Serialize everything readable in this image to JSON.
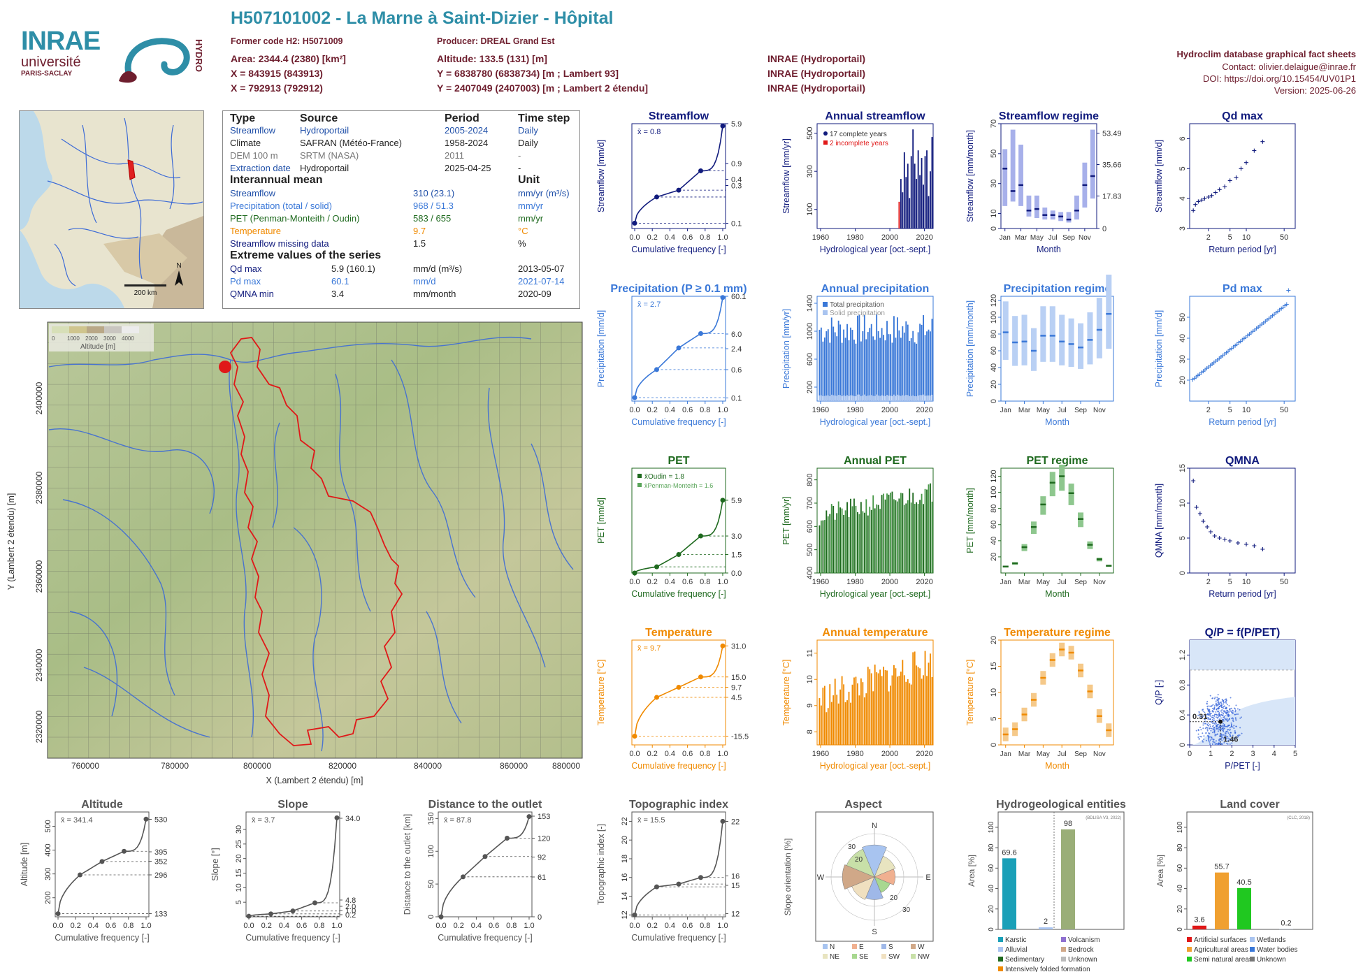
{
  "header": {
    "title": "H507101002 - La Marne à Saint-Dizier - Hôpital",
    "former_code": "Former code H2: H5071009",
    "producer": "Producer: DREAL Grand Est",
    "area": "Area: 2344.4 (2380) [km²]",
    "altitude": "Altitude: 133.5 (131) [m]",
    "x93": "X = 843915 (843913)",
    "y93": "Y = 6838780 (6838734) [m ; Lambert 93]",
    "x2e": "X = 792913 (792912)",
    "y2e": "Y = 2407049 (2407003) [m ; Lambert 2 étendu]",
    "src1": "INRAE (Hydroportail)",
    "src2": "INRAE (Hydroportail)",
    "src3": "INRAE (Hydroportail)",
    "right1": "Hydroclim database graphical fact sheets",
    "right2": "Contact: olivier.delaigue@inrae.fr",
    "right3": "DOI: https://doi.org/10.15454/UV01P1",
    "right4": "Version: 2025-06-26"
  },
  "logos": {
    "inrae": "INRAE",
    "univ": "université",
    "univ2": "PARIS-SACLAY",
    "hydro": "HYDRO"
  },
  "info": {
    "h_type": "Type",
    "h_source": "Source",
    "h_period": "Period",
    "h_step": "Time step",
    "rows": [
      {
        "type": "Streamflow",
        "source": "Hydroportail",
        "period": "2005-2024",
        "step": "Daily"
      },
      {
        "type": "Climate",
        "source": "SAFRAN (Météo-France)",
        "period": "1958-2024",
        "step": "Daily"
      },
      {
        "type": "DEM 100 m",
        "source": "SRTM (NASA)",
        "period": "2011",
        "step": "-"
      },
      {
        "type": "Extraction date",
        "source": "Hydroportail",
        "period": "2025-04-25",
        "step": "-"
      }
    ],
    "h_mean": "Interannual mean",
    "h_unit": "Unit",
    "means": [
      {
        "label": "Streamflow",
        "value": "310 (23.1)",
        "unit": "mm/yr (m³/s)"
      },
      {
        "label": "Precipitation (total / solid)",
        "value": "968 / 51.3",
        "unit": "mm/yr"
      },
      {
        "label": "PET (Penman-Monteith / Oudin)",
        "value": "583 / 655",
        "unit": "mm/yr"
      },
      {
        "label": "Temperature",
        "value": "9.7",
        "unit": "°C"
      },
      {
        "label": "Streamflow missing data",
        "value": "1.5",
        "unit": "%"
      }
    ],
    "h_extreme": "Extreme values of the series",
    "extremes": [
      {
        "label": "Qd max",
        "value": "5.9 (160.1)",
        "unit": "mm/d (m³/s)",
        "date": "2013-05-07"
      },
      {
        "label": "Pd max",
        "value": "60.1",
        "unit": "mm/d",
        "date": "2021-07-14"
      },
      {
        "label": "QMNA min",
        "value": "3.4",
        "unit": "mm/month",
        "date": "2020-09"
      }
    ]
  },
  "minimap": {
    "scale": "200 km",
    "north": "N"
  },
  "map": {
    "xlabel": "X (Lambert 2 étendu) [m]",
    "ylabel": "Y (Lambert 2 étendu) [m]",
    "xticks": [
      "760000",
      "780000",
      "800000",
      "820000",
      "840000",
      "860000",
      "880000"
    ],
    "yticks": [
      "2400000",
      "2380000",
      "2360000",
      "2340000",
      "2320000"
    ],
    "legend_title": "Altitude [m]",
    "legend_ticks": [
      "0",
      "1000",
      "2000",
      "3000",
      "4000"
    ]
  },
  "panels": {
    "streamflow": {
      "title": "Streamflow",
      "ylabel": "Streamflow [mm/d]",
      "xlabel": "Cumulative frequency [-]",
      "mean": "x̄ = 0.8",
      "right_ticks": [
        "5.9",
        "0.9",
        "0.4",
        "0.3",
        "0.1"
      ]
    },
    "annual_streamflow": {
      "title": "Annual streamflow",
      "ylabel": "Streamflow [mm/yr]",
      "xlabel": "Hydrological year [oct.-sept.]",
      "leg1": "17 complete years",
      "leg2": "2 incomplete years"
    },
    "streamflow_regime": {
      "title": "Streamflow regime",
      "ylabel": "Streamflow [mm/month]",
      "xlabel": "Month",
      "right_label": "Streamflow [m³/s]",
      "right_ticks": [
        "53.49",
        "35.66",
        "17.83",
        "0"
      ]
    },
    "qd_max": {
      "title": "Qd max",
      "ylabel": "Streamflow [mm/d]",
      "xlabel": "Return period [yr]"
    },
    "precipitation": {
      "title": "Precipitation (P ≥ 0.1 mm)",
      "ylabel": "Precipitation [mm/d]",
      "xlabel": "Cumulative frequency [-]",
      "mean": "x̄ = 2.7",
      "right_ticks": [
        "60.1",
        "6.0",
        "2.4",
        "0.6",
        "0.1"
      ]
    },
    "annual_precip": {
      "title": "Annual precipitation",
      "ylabel": "Precipitation [mm/yr]",
      "xlabel": "Hydrological year [oct.-sept.]",
      "leg1": "Total precipitation",
      "leg2": "Solid precipitation"
    },
    "precip_regime": {
      "title": "Precipitation regime",
      "ylabel": "Precipitation [mm/month]",
      "xlabel": "Month"
    },
    "pd_max": {
      "title": "Pd max",
      "ylabel": "Precipitation [mm/d]",
      "xlabel": "Return period [yr]"
    },
    "pet": {
      "title": "PET",
      "ylabel": "PET [mm/d]",
      "xlabel": "Cumulative frequency [-]",
      "leg1": "x̄Oudin = 1.8",
      "leg2": "x̄Penman-Monteith = 1.6",
      "right_ticks": [
        "5.9",
        "3.0",
        "1.5",
        "0.0"
      ]
    },
    "annual_pet": {
      "title": "Annual PET",
      "ylabel": "PET [mm/yr]",
      "xlabel": "Hydrological year [oct.-sept.]"
    },
    "pet_regime": {
      "title": "PET regime",
      "ylabel": "PET [mm/month]",
      "xlabel": "Month"
    },
    "qmna": {
      "title": "QMNA",
      "ylabel": "QMNA [mm/month]",
      "xlabel": "Return period [yr]"
    },
    "temperature": {
      "title": "Temperature",
      "ylabel": "Temperature [°C]",
      "xlabel": "Cumulative frequency [-]",
      "mean": "x̄ = 9.7",
      "right_ticks": [
        "31.0",
        "15.0",
        "9.7",
        "4.5",
        "-15.5"
      ]
    },
    "annual_temp": {
      "title": "Annual temperature",
      "ylabel": "Temperature [°C]",
      "xlabel": "Hydrological year [oct.-sept.]"
    },
    "temp_regime": {
      "title": "Temperature regime",
      "ylabel": "Temperature [°C]",
      "xlabel": "Month"
    },
    "qp": {
      "title": "Q/P = f(P/PET)",
      "ylabel": "Q/P [-]",
      "xlabel": "P/PET [-]",
      "ann1": "0.31",
      "ann2": "1.46"
    },
    "altitude": {
      "title": "Altitude",
      "ylabel": "Altitude [m]",
      "xlabel": "Cumulative frequency [-]",
      "mean": "x̄ = 341.4",
      "right_ticks": [
        "530",
        "395",
        "352",
        "296",
        "133"
      ]
    },
    "slope": {
      "title": "Slope",
      "ylabel": "Slope [°]",
      "xlabel": "Cumulative frequency [-]",
      "mean": "x̄ = 3.7",
      "right_ticks": [
        "34.0",
        "4.8",
        "2.0",
        "1.0",
        "0.2"
      ]
    },
    "distance": {
      "title": "Distance to the outlet",
      "ylabel": "Distance to the outlet [km]",
      "xlabel": "Cumulative frequency [-]",
      "mean": "x̄ = 87.8",
      "right_ticks": [
        "153",
        "120",
        "92",
        "61",
        "0"
      ]
    },
    "topo": {
      "title": "Topographic index",
      "ylabel": "Topographic index [-]",
      "xlabel": "Cumulative frequency [-]",
      "mean": "x̄ = 15.5",
      "right_ticks": [
        "22",
        "16",
        "15",
        "12"
      ]
    },
    "aspect": {
      "title": "Aspect",
      "ylabel": "Slope orientation [%]",
      "legend": [
        "N",
        "E",
        "S",
        "W",
        "NE",
        "SE",
        "SW",
        "NW"
      ]
    },
    "hydrogeo": {
      "title": "Hydrogeological entities",
      "ylabel": "Area [%]",
      "source": "(BDLISA V3, 2022)",
      "legend": [
        "Karstic",
        "Volcanism",
        "Alluvial",
        "Bedrock",
        "Sedimentary",
        "Unknown",
        "Intensively folded formation"
      ]
    },
    "landcover": {
      "title": "Land cover",
      "ylabel": "Area [%]",
      "source": "(CLC, 2018)",
      "legend": [
        "Artificial surfaces",
        "Wetlands",
        "Agricultural areas",
        "Water bodies",
        "Semi natural areas",
        "Unknown"
      ]
    }
  },
  "chart_data": [
    {
      "type": "line",
      "name": "streamflow_cdf",
      "x": [
        0,
        0.25,
        0.5,
        0.75,
        1.0
      ],
      "y": [
        0.1,
        0.3,
        0.4,
        0.9,
        5.9
      ],
      "yscale": "log",
      "ylim": [
        0.1,
        6
      ]
    },
    {
      "type": "bar",
      "name": "annual_streamflow",
      "x": [
        2006,
        2007,
        2008,
        2009,
        2010,
        2011,
        2012,
        2013,
        2014,
        2015,
        2016,
        2017,
        2018,
        2019,
        2020,
        2021,
        2022,
        2023,
        2024
      ],
      "values": [
        260,
        190,
        400,
        270,
        340,
        160,
        380,
        520,
        340,
        260,
        410,
        280,
        370,
        230,
        380,
        410,
        170,
        300,
        480
      ],
      "incomplete": [
        2005,
        2024
      ],
      "ylim": [
        0,
        550
      ]
    },
    {
      "type": "box",
      "name": "streamflow_regime",
      "categories": [
        "Jan",
        "Feb",
        "Mar",
        "Apr",
        "May",
        "Jun",
        "Jul",
        "Aug",
        "Sep",
        "Oct",
        "Nov",
        "Dec"
      ],
      "median": [
        40,
        25,
        29,
        12,
        13,
        9,
        9,
        8,
        6,
        12,
        29,
        35
      ],
      "q25": [
        15,
        18,
        15,
        8,
        7,
        6,
        6,
        5,
        4,
        6,
        14,
        20
      ],
      "q75": [
        53,
        66,
        56,
        22,
        22,
        14,
        12,
        11,
        11,
        22,
        44,
        66
      ],
      "ylim": [
        0,
        70
      ]
    },
    {
      "type": "scatter",
      "name": "qd_max",
      "x": [
        1.05,
        1.15,
        1.3,
        1.5,
        1.7,
        2,
        2.3,
        2.7,
        3.2,
        4,
        5,
        6.5,
        8,
        10,
        14,
        20
      ],
      "y": [
        3.6,
        3.8,
        3.9,
        3.95,
        4.0,
        4.05,
        4.1,
        4.2,
        4.3,
        4.4,
        4.6,
        4.7,
        5.0,
        5.2,
        5.6,
        5.9
      ],
      "xscale": "log"
    },
    {
      "type": "line",
      "name": "precipitation_cdf",
      "x": [
        0,
        0.25,
        0.5,
        0.75,
        1.0
      ],
      "y": [
        0.1,
        0.6,
        2.4,
        6.0,
        60.1
      ],
      "yscale": "log"
    },
    {
      "type": "bar",
      "name": "annual_precipitation",
      "x_range": [
        1959,
        2024
      ],
      "ylim": [
        0,
        1500
      ]
    },
    {
      "type": "box",
      "name": "precip_regime",
      "categories": [
        "Jan",
        "Feb",
        "Mar",
        "Apr",
        "May",
        "Jun",
        "Jul",
        "Aug",
        "Sep",
        "Oct",
        "Nov",
        "Dec"
      ],
      "median": [
        82,
        70,
        71,
        60,
        78,
        78,
        71,
        68,
        64,
        73,
        85,
        104
      ],
      "ylim": [
        0,
        125
      ]
    },
    {
      "type": "line",
      "name": "pet_cdf",
      "x": [
        0,
        0.25,
        0.5,
        0.75,
        1.0
      ],
      "y": [
        0.0,
        0.5,
        1.5,
        3.0,
        5.9
      ]
    },
    {
      "type": "bar",
      "name": "annual_pet",
      "x_range": [
        1959,
        2024
      ],
      "ylim": [
        400,
        850
      ]
    },
    {
      "type": "box",
      "name": "pet_regime",
      "categories": [
        "Jan",
        "Feb",
        "Mar",
        "Apr",
        "May",
        "Jun",
        "Jul",
        "Aug",
        "Sep",
        "Oct",
        "Nov",
        "Dec"
      ],
      "median": [
        8,
        12,
        32,
        57,
        85,
        112,
        120,
        99,
        67,
        35,
        17,
        9
      ],
      "ylim": [
        0,
        130
      ]
    },
    {
      "type": "scatter",
      "name": "qmna",
      "x": [
        1.05,
        1.2,
        1.4,
        1.6,
        1.9,
        2.2,
        2.6,
        3.2,
        4,
        5,
        7,
        10,
        14,
        20
      ],
      "y": [
        13.2,
        9.4,
        8.5,
        7.4,
        6.6,
        5.9,
        5.3,
        5.0,
        4.8,
        4.6,
        4.3,
        4.1,
        3.9,
        3.4
      ],
      "xscale": "log"
    },
    {
      "type": "line",
      "name": "temperature_cdf",
      "x": [
        0,
        0.25,
        0.5,
        0.75,
        1.0
      ],
      "y": [
        -15.5,
        4.5,
        9.7,
        15.0,
        31.0
      ]
    },
    {
      "type": "bar",
      "name": "annual_temperature",
      "x_range": [
        1959,
        2024
      ],
      "ylim": [
        8,
        12
      ]
    },
    {
      "type": "box",
      "name": "temp_regime",
      "categories": [
        "Jan",
        "Feb",
        "Mar",
        "Apr",
        "May",
        "Jun",
        "Jul",
        "Aug",
        "Sep",
        "Oct",
        "Nov",
        "Dec"
      ],
      "median": [
        2.0,
        3.0,
        5.8,
        8.6,
        12.8,
        16.2,
        18.2,
        17.6,
        14.2,
        10.2,
        5.5,
        2.8
      ],
      "ylim": [
        0,
        20
      ]
    },
    {
      "type": "scatter",
      "name": "qp",
      "xlim": [
        0,
        5
      ],
      "ylim": [
        0,
        1.4
      ],
      "highlight": [
        1.46,
        0.31
      ]
    },
    {
      "type": "line",
      "name": "altitude_cdf",
      "x": [
        0,
        0.25,
        0.5,
        0.75,
        1.0
      ],
      "y": [
        133,
        296,
        352,
        395,
        530
      ]
    },
    {
      "type": "line",
      "name": "slope_cdf",
      "x": [
        0,
        0.25,
        0.5,
        0.75,
        1.0
      ],
      "y": [
        0.2,
        1.0,
        2.0,
        4.8,
        34.0
      ]
    },
    {
      "type": "line",
      "name": "distance_cdf",
      "x": [
        0,
        0.25,
        0.5,
        0.75,
        1.0
      ],
      "y": [
        0,
        61,
        92,
        120,
        153
      ]
    },
    {
      "type": "line",
      "name": "topo_cdf",
      "x": [
        0,
        0.25,
        0.5,
        0.75,
        1.0
      ],
      "y": [
        12,
        15,
        15.3,
        16,
        22
      ]
    },
    {
      "type": "bar",
      "name": "hydrogeo",
      "categories": [
        "Karstic",
        "Alluvial",
        "Volcanism",
        "Sedimentary"
      ],
      "values": [
        69.6,
        2,
        98,
        0
      ],
      "labels": [
        "69.6",
        "2",
        "98"
      ]
    },
    {
      "type": "bar",
      "name": "landcover",
      "categories": [
        "Artificial surfaces",
        "Agricultural areas",
        "Semi natural areas",
        "Wetlands"
      ],
      "values": [
        3.6,
        55.7,
        40.5,
        0.2
      ],
      "labels": [
        "3.6",
        "55.7",
        "40.5",
        "0.2"
      ]
    }
  ],
  "colors": {
    "navy": "#111b7d",
    "blue": "#3a78d8",
    "green": "#1f6a1f",
    "orange": "#f08a00",
    "grey": "#555555",
    "maroon": "#6e1e2e",
    "teal": "#2e8ea7"
  }
}
